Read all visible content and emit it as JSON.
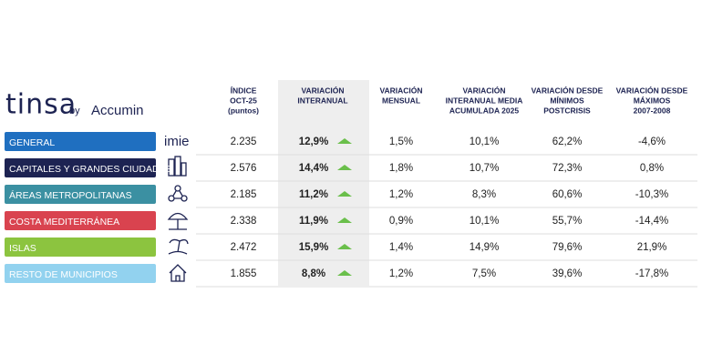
{
  "logo": {
    "brand": "tinsa",
    "by": "by",
    "partner": "Accumin"
  },
  "table": {
    "columns": [
      [
        "ÍNDICE",
        "OCT-25",
        "(puntos)"
      ],
      [
        "VARIACIÓN",
        "INTERANUAL"
      ],
      [
        "VARIACIÓN",
        "MENSUAL"
      ],
      [
        "VARIACIÓN",
        "INTERANUAL MEDIA",
        "ACUMULADA 2025"
      ],
      [
        "VARIACIÓN DESDE",
        "MÍNIMOS",
        "POSTCRISIS"
      ],
      [
        "VARIACIÓN DESDE",
        "MÁXIMOS",
        "2007-2008"
      ]
    ],
    "rows": [
      {
        "label": "GENERAL",
        "color": "#1f6fc0",
        "icon": "imie",
        "cells": [
          "2.235",
          "12,9%",
          "1,5%",
          "10,1%",
          "62,2%",
          "-4,6%"
        ]
      },
      {
        "label": "CAPITALES Y GRANDES CIUDADES",
        "color": "#1d2352",
        "cells": [
          "2.576",
          "14,4%",
          "1,8%",
          "10,7%",
          "72,3%",
          "0,8%"
        ]
      },
      {
        "label": "ÁREAS METROPOLITANAS",
        "color": "#3b90a2",
        "cells": [
          "2.185",
          "11,2%",
          "1,2%",
          "8,3%",
          "60,6%",
          "-10,3%"
        ]
      },
      {
        "label": "COSTA MEDITERRÁNEA",
        "color": "#d9434f",
        "cells": [
          "2.338",
          "11,9%",
          "0,9%",
          "10,1%",
          "55,7%",
          "-14,4%"
        ]
      },
      {
        "label": "ISLAS",
        "color": "#8cc43f",
        "cells": [
          "2.472",
          "15,9%",
          "1,4%",
          "14,9%",
          "79,6%",
          "21,9%"
        ]
      },
      {
        "label": "RESTO DE MUNICIPIOS",
        "color": "#92d2ef",
        "cells": [
          "1.855",
          "8,8%",
          "1,2%",
          "7,5%",
          "39,6%",
          "-17,8%"
        ]
      }
    ]
  }
}
